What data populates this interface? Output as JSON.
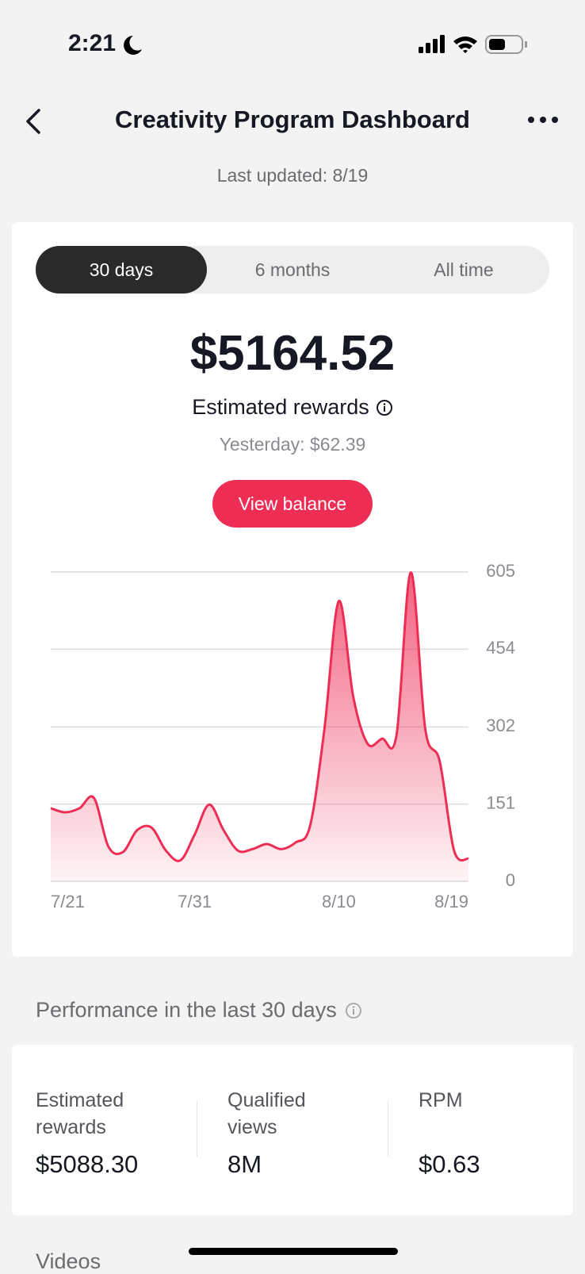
{
  "status_bar": {
    "time": "2:21"
  },
  "header": {
    "title": "Creativity Program Dashboard",
    "subtitle": "Last updated: 8/19"
  },
  "tabs": [
    "30 days",
    "6 months",
    "All time"
  ],
  "summary": {
    "amount": "$5164.52",
    "label": "Estimated rewards",
    "yesterday": "Yesterday: $62.39",
    "button": "View balance"
  },
  "chart_data": {
    "type": "area",
    "color": "#ee2d55",
    "categories": [
      "7/21",
      null,
      null,
      null,
      null,
      null,
      null,
      null,
      null,
      null,
      "7/31",
      null,
      null,
      null,
      null,
      null,
      null,
      null,
      null,
      null,
      "8/10",
      null,
      null,
      null,
      null,
      null,
      null,
      null,
      null,
      "8/19"
    ],
    "values": [
      143,
      135,
      143,
      163,
      68,
      57,
      100,
      105,
      60,
      41,
      92,
      150,
      100,
      60,
      63,
      73,
      63,
      76,
      108,
      298,
      548,
      361,
      269,
      279,
      285,
      604,
      298,
      235,
      60,
      44
    ],
    "ylim": [
      0,
      605
    ],
    "yticks": [
      0,
      151,
      302,
      454,
      605
    ],
    "grid": true
  },
  "performance": {
    "title": "Performance in the last 30 days",
    "metrics": [
      {
        "label": "Estimated rewards",
        "value": "$5088.30"
      },
      {
        "label": "Qualified views",
        "value": "8M"
      },
      {
        "label": "RPM",
        "value": "$0.63"
      }
    ]
  },
  "videos": {
    "title": "Videos"
  }
}
